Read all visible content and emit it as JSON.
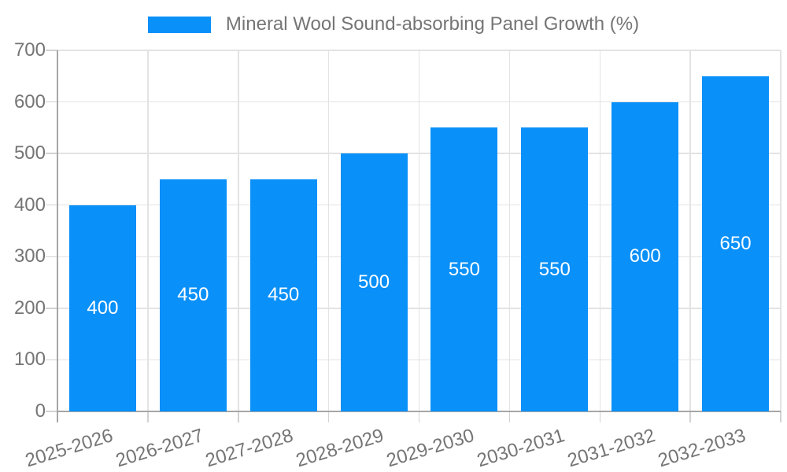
{
  "chart_data": {
    "type": "bar",
    "title": "Mineral Wool Sound-absorbing Panel Growth (%)",
    "legend_position": "top-center",
    "categories": [
      "2025-2026",
      "2026-2027",
      "2027-2028",
      "2028-2029",
      "2029-2030",
      "2030-2031",
      "2031-2032",
      "2032-2033"
    ],
    "values": [
      400,
      450,
      450,
      500,
      550,
      550,
      600,
      650
    ],
    "xlabel": "",
    "ylabel": "",
    "ylim": [
      0,
      700
    ],
    "ytick_step": 100,
    "ytick_labels": [
      "0",
      "100",
      "200",
      "300",
      "400",
      "500",
      "600",
      "700"
    ],
    "grid": "both",
    "value_labels": "inside-center",
    "colors": {
      "bar": "#0a90f9",
      "value_label": "#ffffff",
      "axis_label": "#757575",
      "axis_line": "#a6a6a6",
      "grid_line": "#e3e3e3",
      "tick_line": "#d2d2d2",
      "background": "#ffffff"
    }
  }
}
